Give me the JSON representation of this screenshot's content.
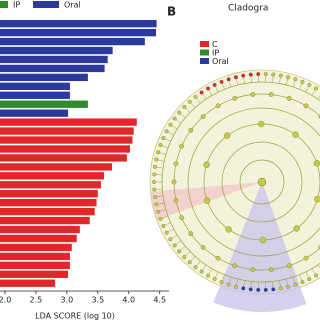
{
  "chart_data": {
    "type": "bar",
    "orientation": "horizontal",
    "xlabel": "LDA SCORE (log 10)",
    "categories": [
      null,
      null,
      null,
      null,
      null,
      null,
      null,
      null,
      null,
      null,
      null,
      null,
      null,
      null,
      null,
      null,
      null,
      null,
      null,
      null,
      null,
      null,
      null,
      null,
      null,
      null,
      null,
      null,
      null,
      null
    ],
    "series": [
      {
        "name": "IP",
        "color": "#2e8b2e",
        "values": [
          null,
          null,
          null,
          null,
          null,
          null,
          null,
          null,
          null,
          3.34,
          null,
          null,
          null,
          null,
          null,
          null,
          null,
          null,
          null,
          null,
          null,
          null,
          null,
          null,
          null,
          null,
          null,
          null,
          null,
          null
        ]
      },
      {
        "name": "Oral",
        "color": "#2b3a9c",
        "values": [
          4.45,
          4.44,
          4.26,
          3.74,
          3.66,
          3.61,
          3.34,
          3.05,
          3.05,
          null,
          3.02,
          null,
          null,
          null,
          null,
          null,
          null,
          null,
          null,
          null,
          null,
          null,
          null,
          null,
          null,
          null,
          null,
          null,
          null,
          null
        ]
      },
      {
        "name": "C",
        "color": "#e0282a",
        "values": [
          null,
          null,
          null,
          null,
          null,
          null,
          null,
          null,
          null,
          null,
          null,
          4.13,
          4.08,
          4.06,
          4.02,
          3.97,
          3.73,
          3.6,
          3.55,
          3.5,
          3.48,
          3.45,
          3.37,
          3.21,
          3.16,
          3.08,
          3.05,
          3.05,
          3.02,
          2.81
        ]
      }
    ],
    "xlim": [
      1.92,
      4.65
    ],
    "xticks": [
      {
        "value": 2,
        "label": "2.0"
      },
      {
        "value": 2.5,
        "label": "2.5"
      },
      {
        "value": 3,
        "label": "3.0"
      },
      {
        "value": 3.5,
        "label": "3.5"
      },
      {
        "value": 4,
        "label": "4.0"
      },
      {
        "value": 4.5,
        "label": "4.5"
      }
    ]
  },
  "panel_b": {
    "label": "B",
    "title": "Cladogra",
    "legend": [
      {
        "name": "C",
        "color": "#e0282a"
      },
      {
        "name": "IP",
        "color": "#2e8b2e"
      },
      {
        "name": "Oral",
        "color": "#2b3a9c"
      }
    ]
  }
}
